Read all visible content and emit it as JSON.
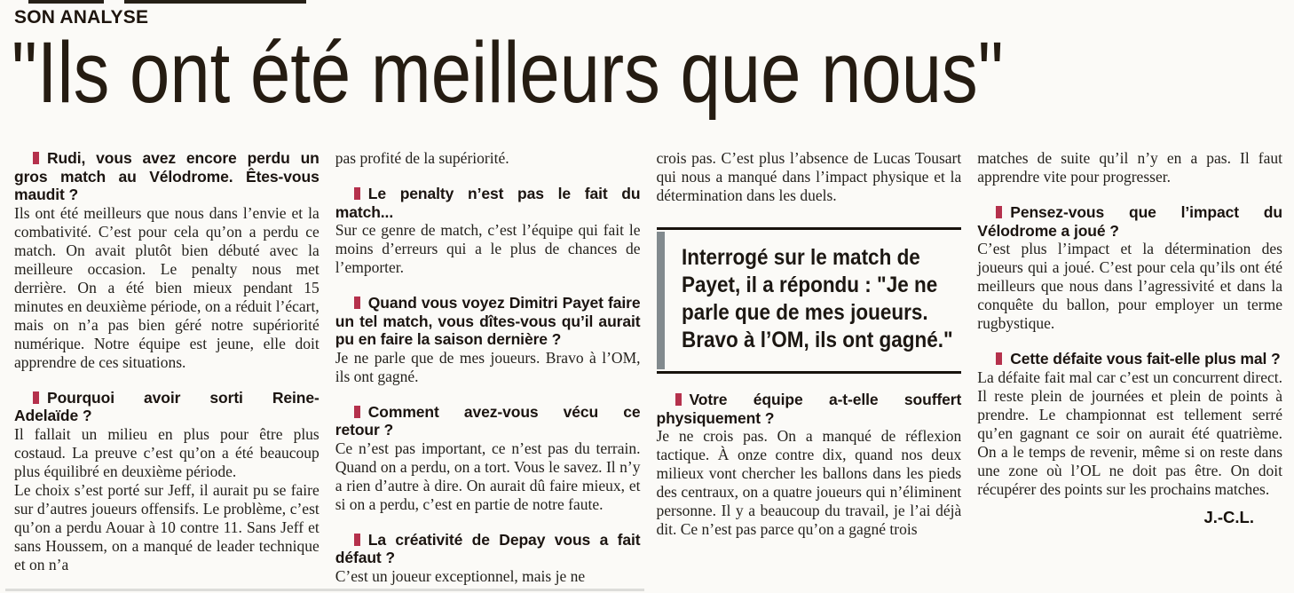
{
  "header": {
    "kicker": "SON ANALYSE",
    "headline": "\"Ils ont été meilleurs que nous\""
  },
  "colors": {
    "accent_red": "#b5314c",
    "quote_bar_gray": "#828a8e",
    "headline_text": "#251c12",
    "body_text": "#24211c",
    "background": "#fbfaf7"
  },
  "quote_box": {
    "lines": [
      "Interrogé sur le match de",
      "Payet, il a répondu : \"Je ne",
      "parle que de mes joueurs.",
      "Bravo à l’OM, ils ont gagné.\""
    ]
  },
  "columns": {
    "c1": {
      "q1": "Rudi, vous avez encore perdu un gros match au Vélodrome. Êtes-vous maudit ?",
      "a1": "Ils ont été meilleurs que nous dans l’envie et la combativité. C’est pour cela qu’on a perdu ce match. On avait plutôt bien débuté avec la meilleure occasion. Le penalty nous met derrière. On a été bien mieux pendant 15 minutes en deuxième période, on a réduit l’écart, mais on n’a pas bien géré notre supériorité numérique. Notre équipe est jeune, elle doit apprendre de ces situations.",
      "q2": "Pourquoi avoir sorti Reine-Adelaïde ?",
      "a2a": "Il fallait un milieu en plus pour être plus costaud. La preuve c’est qu’on a été beaucoup plus équilibré en deuxième période.",
      "a2b": "Le choix s’est porté sur Jeff, il aurait pu se faire sur d’autres joueurs offensifs. Le problème, c’est qu’on a perdu Aouar à 10 contre 11. Sans Jeff et sans Houssem, on a manqué de leader technique et on n’a"
    },
    "c2": {
      "cont": "pas profité de la supériorité.",
      "q3": "Le penalty n’est pas le fait du match...",
      "a3": "Sur ce genre de match, c’est l’équipe qui fait le moins d’erreurs qui a le plus de chances de l’emporter.",
      "q4": "Quand vous voyez Dimitri Payet faire un tel match, vous dîtes-vous qu’il aurait pu en faire la saison dernière ?",
      "a4": "Je ne parle que de mes joueurs. Bravo à l’OM, ils ont gagné.",
      "q5": "Comment avez-vous vécu ce retour ?",
      "a5": "Ce n’est pas important, ce n’est pas du terrain. Quand on a perdu, on a tort. Vous le savez. Il n’y a rien d’autre à dire. On aurait dû faire mieux, et si on a perdu, c’est en partie de notre faute.",
      "q6": "La créativité de Depay vous a fait défaut ?",
      "a6": "C’est un joueur exceptionnel, mais je ne"
    },
    "c3": {
      "cont": "crois pas. C’est plus l’absence de Lucas Tousart qui nous a manqué dans l’impact physique et la détermination dans les duels.",
      "q7": "Votre équipe a-t-elle souffert physiquement ?",
      "a7": "Je ne crois pas. On a manqué de réflexion tactique. À onze contre dix, quand nos deux milieux vont chercher les ballons dans les pieds des centraux, on a quatre joueurs qui n’éliminent personne. Il y a beaucoup du travail, je l’ai déjà dit. Ce n’est pas parce qu’on a gagné trois"
    },
    "c4": {
      "cont": "matches de suite qu’il n’y en a pas. Il faut apprendre vite pour progresser.",
      "q8": "Pensez-vous que l’impact du Vélodrome a joué ?",
      "a8": "C’est plus l’impact et la détermination des joueurs qui a joué. C’est pour cela qu’ils ont été meilleurs que nous dans l’agressivité et dans la conquête du ballon, pour employer un terme rugbystique.",
      "q9": "Cette défaite vous fait-elle plus mal ?",
      "a9": "La défaite fait mal car c’est un concurrent direct. Il reste plein de journées et plein de points à prendre. Le championnat est tellement serré qu’en gagnant ce soir on aurait été quatrième. On a le temps de revenir, même si on reste dans une zone où l’OL ne doit pas être. On doit récupérer des points sur les prochains matches.",
      "sig": "J.-C.L."
    }
  }
}
